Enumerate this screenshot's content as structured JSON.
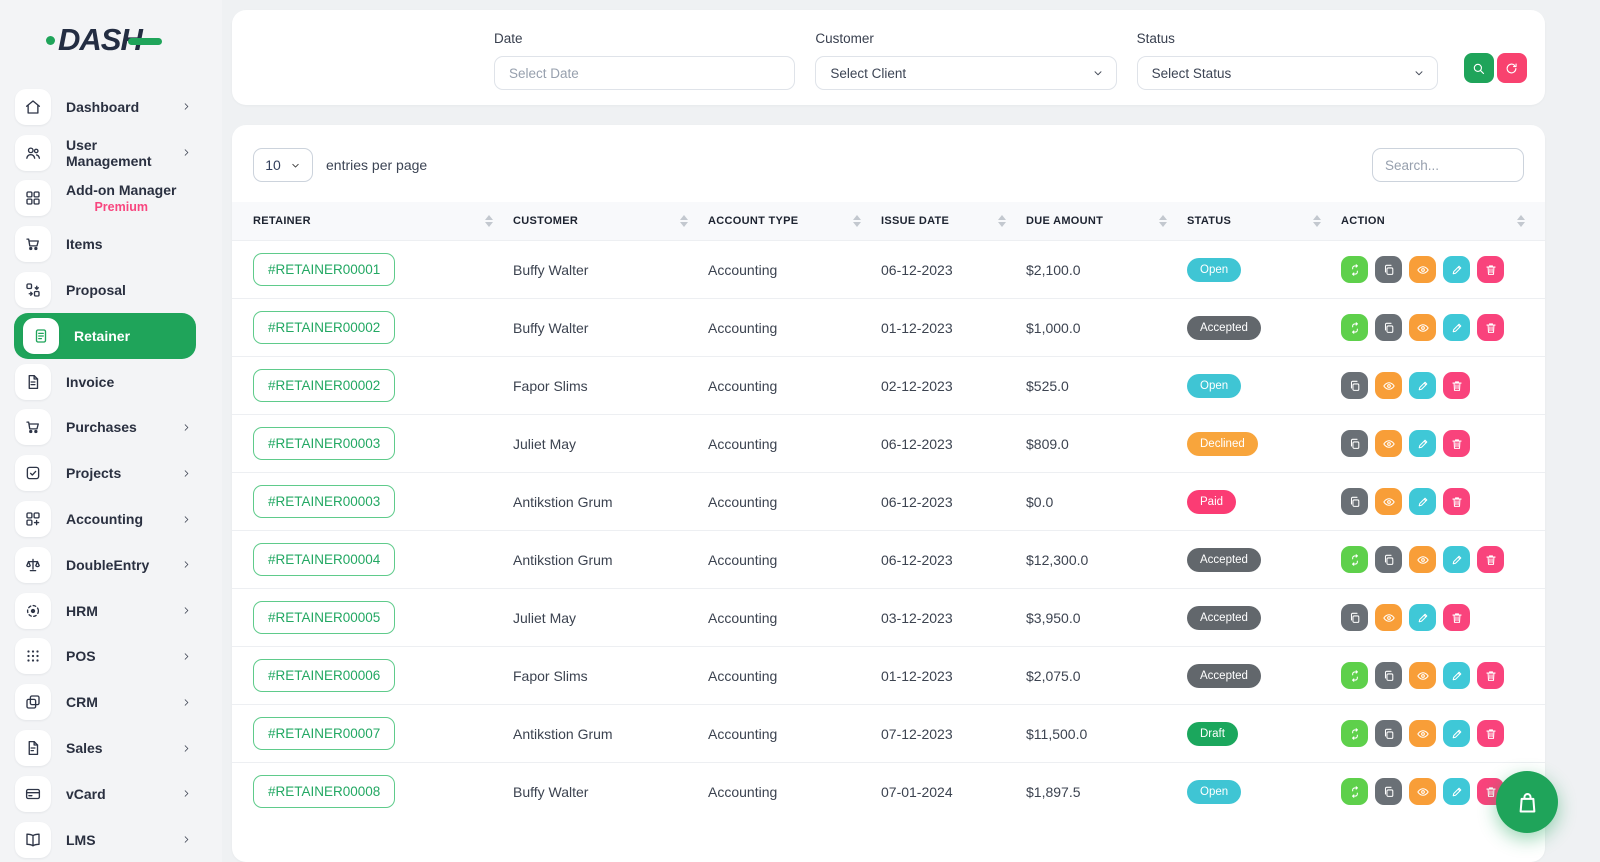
{
  "brand": {
    "logo_text": "DASH"
  },
  "sidebar": {
    "items": [
      {
        "label": "Dashboard",
        "icon": "home-icon",
        "chevron": true
      },
      {
        "label": "User Management",
        "icon": "users-icon",
        "chevron": true
      },
      {
        "label": "Add-on Manager",
        "subtitle": "Premium",
        "icon": "addons-icon",
        "chevron": false
      },
      {
        "label": "Items",
        "icon": "cart-icon",
        "chevron": false
      },
      {
        "label": "Proposal",
        "icon": "proposal-icon",
        "chevron": false
      },
      {
        "label": "Retainer",
        "icon": "retainer-icon",
        "chevron": false,
        "active": true
      },
      {
        "label": "Invoice",
        "icon": "invoice-icon",
        "chevron": false
      },
      {
        "label": "Purchases",
        "icon": "cart-icon",
        "chevron": true
      },
      {
        "label": "Projects",
        "icon": "projects-icon",
        "chevron": true
      },
      {
        "label": "Accounting",
        "icon": "accounting-icon",
        "chevron": true
      },
      {
        "label": "DoubleEntry",
        "icon": "scales-icon",
        "chevron": true
      },
      {
        "label": "HRM",
        "icon": "hrm-icon",
        "chevron": true
      },
      {
        "label": "POS",
        "icon": "pos-icon",
        "chevron": true
      },
      {
        "label": "CRM",
        "icon": "crm-icon",
        "chevron": true
      },
      {
        "label": "Sales",
        "icon": "sales-icon",
        "chevron": true
      },
      {
        "label": "vCard",
        "icon": "vcard-icon",
        "chevron": true
      },
      {
        "label": "LMS",
        "icon": "lms-icon",
        "chevron": true
      }
    ]
  },
  "filters": {
    "date": {
      "label": "Date",
      "placeholder": "Select Date"
    },
    "customer": {
      "label": "Customer",
      "value": "Select Client"
    },
    "status": {
      "label": "Status",
      "value": "Select Status"
    }
  },
  "toolbar": {
    "entries_value": "10",
    "entries_label": "entries per page",
    "search_placeholder": "Search..."
  },
  "table": {
    "columns": [
      "RETAINER",
      "CUSTOMER",
      "ACCOUNT TYPE",
      "ISSUE DATE",
      "DUE AMOUNT",
      "STATUS",
      "ACTION"
    ],
    "rows": [
      {
        "retainer": "#RETAINER00001",
        "customer": "Buffy Walter",
        "account_type": "Accounting",
        "issue_date": "06-12-2023",
        "due_amount": "$2,100.0",
        "status": "Open",
        "actions": [
          "convert",
          "duplicate",
          "view",
          "edit",
          "delete"
        ]
      },
      {
        "retainer": "#RETAINER00002",
        "customer": "Buffy Walter",
        "account_type": "Accounting",
        "issue_date": "01-12-2023",
        "due_amount": "$1,000.0",
        "status": "Accepted",
        "actions": [
          "convert",
          "duplicate",
          "view",
          "edit",
          "delete"
        ]
      },
      {
        "retainer": "#RETAINER00002",
        "customer": "Fapor Slims",
        "account_type": "Accounting",
        "issue_date": "02-12-2023",
        "due_amount": "$525.0",
        "status": "Open",
        "actions": [
          "duplicate",
          "view",
          "edit",
          "delete"
        ]
      },
      {
        "retainer": "#RETAINER00003",
        "customer": "Juliet May",
        "account_type": "Accounting",
        "issue_date": "06-12-2023",
        "due_amount": "$809.0",
        "status": "Declined",
        "actions": [
          "duplicate",
          "view",
          "edit",
          "delete"
        ]
      },
      {
        "retainer": "#RETAINER00003",
        "customer": "Antikstion Grum",
        "account_type": "Accounting",
        "issue_date": "06-12-2023",
        "due_amount": "$0.0",
        "status": "Paid",
        "actions": [
          "duplicate",
          "view",
          "edit",
          "delete"
        ]
      },
      {
        "retainer": "#RETAINER00004",
        "customer": "Antikstion Grum",
        "account_type": "Accounting",
        "issue_date": "06-12-2023",
        "due_amount": "$12,300.0",
        "status": "Accepted",
        "actions": [
          "convert",
          "duplicate",
          "view",
          "edit",
          "delete"
        ]
      },
      {
        "retainer": "#RETAINER00005",
        "customer": "Juliet May",
        "account_type": "Accounting",
        "issue_date": "03-12-2023",
        "due_amount": "$3,950.0",
        "status": "Accepted",
        "actions": [
          "duplicate",
          "view",
          "edit",
          "delete"
        ]
      },
      {
        "retainer": "#RETAINER00006",
        "customer": "Fapor Slims",
        "account_type": "Accounting",
        "issue_date": "01-12-2023",
        "due_amount": "$2,075.0",
        "status": "Accepted",
        "actions": [
          "convert",
          "duplicate",
          "view",
          "edit",
          "delete"
        ]
      },
      {
        "retainer": "#RETAINER00007",
        "customer": "Antikstion Grum",
        "account_type": "Accounting",
        "issue_date": "07-12-2023",
        "due_amount": "$11,500.0",
        "status": "Draft",
        "actions": [
          "convert",
          "duplicate",
          "view",
          "edit",
          "delete"
        ]
      },
      {
        "retainer": "#RETAINER00008",
        "customer": "Buffy Walter",
        "account_type": "Accounting",
        "issue_date": "07-01-2024",
        "due_amount": "$1,897.5",
        "status": "Open",
        "actions": [
          "convert",
          "duplicate",
          "view",
          "edit",
          "delete"
        ]
      }
    ]
  },
  "status_colors": {
    "Open": "#3fc5d4",
    "Accepted": "#62676c",
    "Declined": "#f8a53c",
    "Paid": "#fb3c74",
    "Draft": "#1ba75d"
  },
  "action_colors": {
    "convert": "#5ed04b",
    "duplicate": "#6a7076",
    "view": "#f89e38",
    "edit": "#3fc8d7",
    "delete": "#f9437c"
  },
  "colors": {
    "primary_green": "#1fa45a",
    "accent_pink": "#f8426f",
    "navy": "#232d42"
  },
  "fab": {
    "icon": "shopping-bag-icon"
  }
}
